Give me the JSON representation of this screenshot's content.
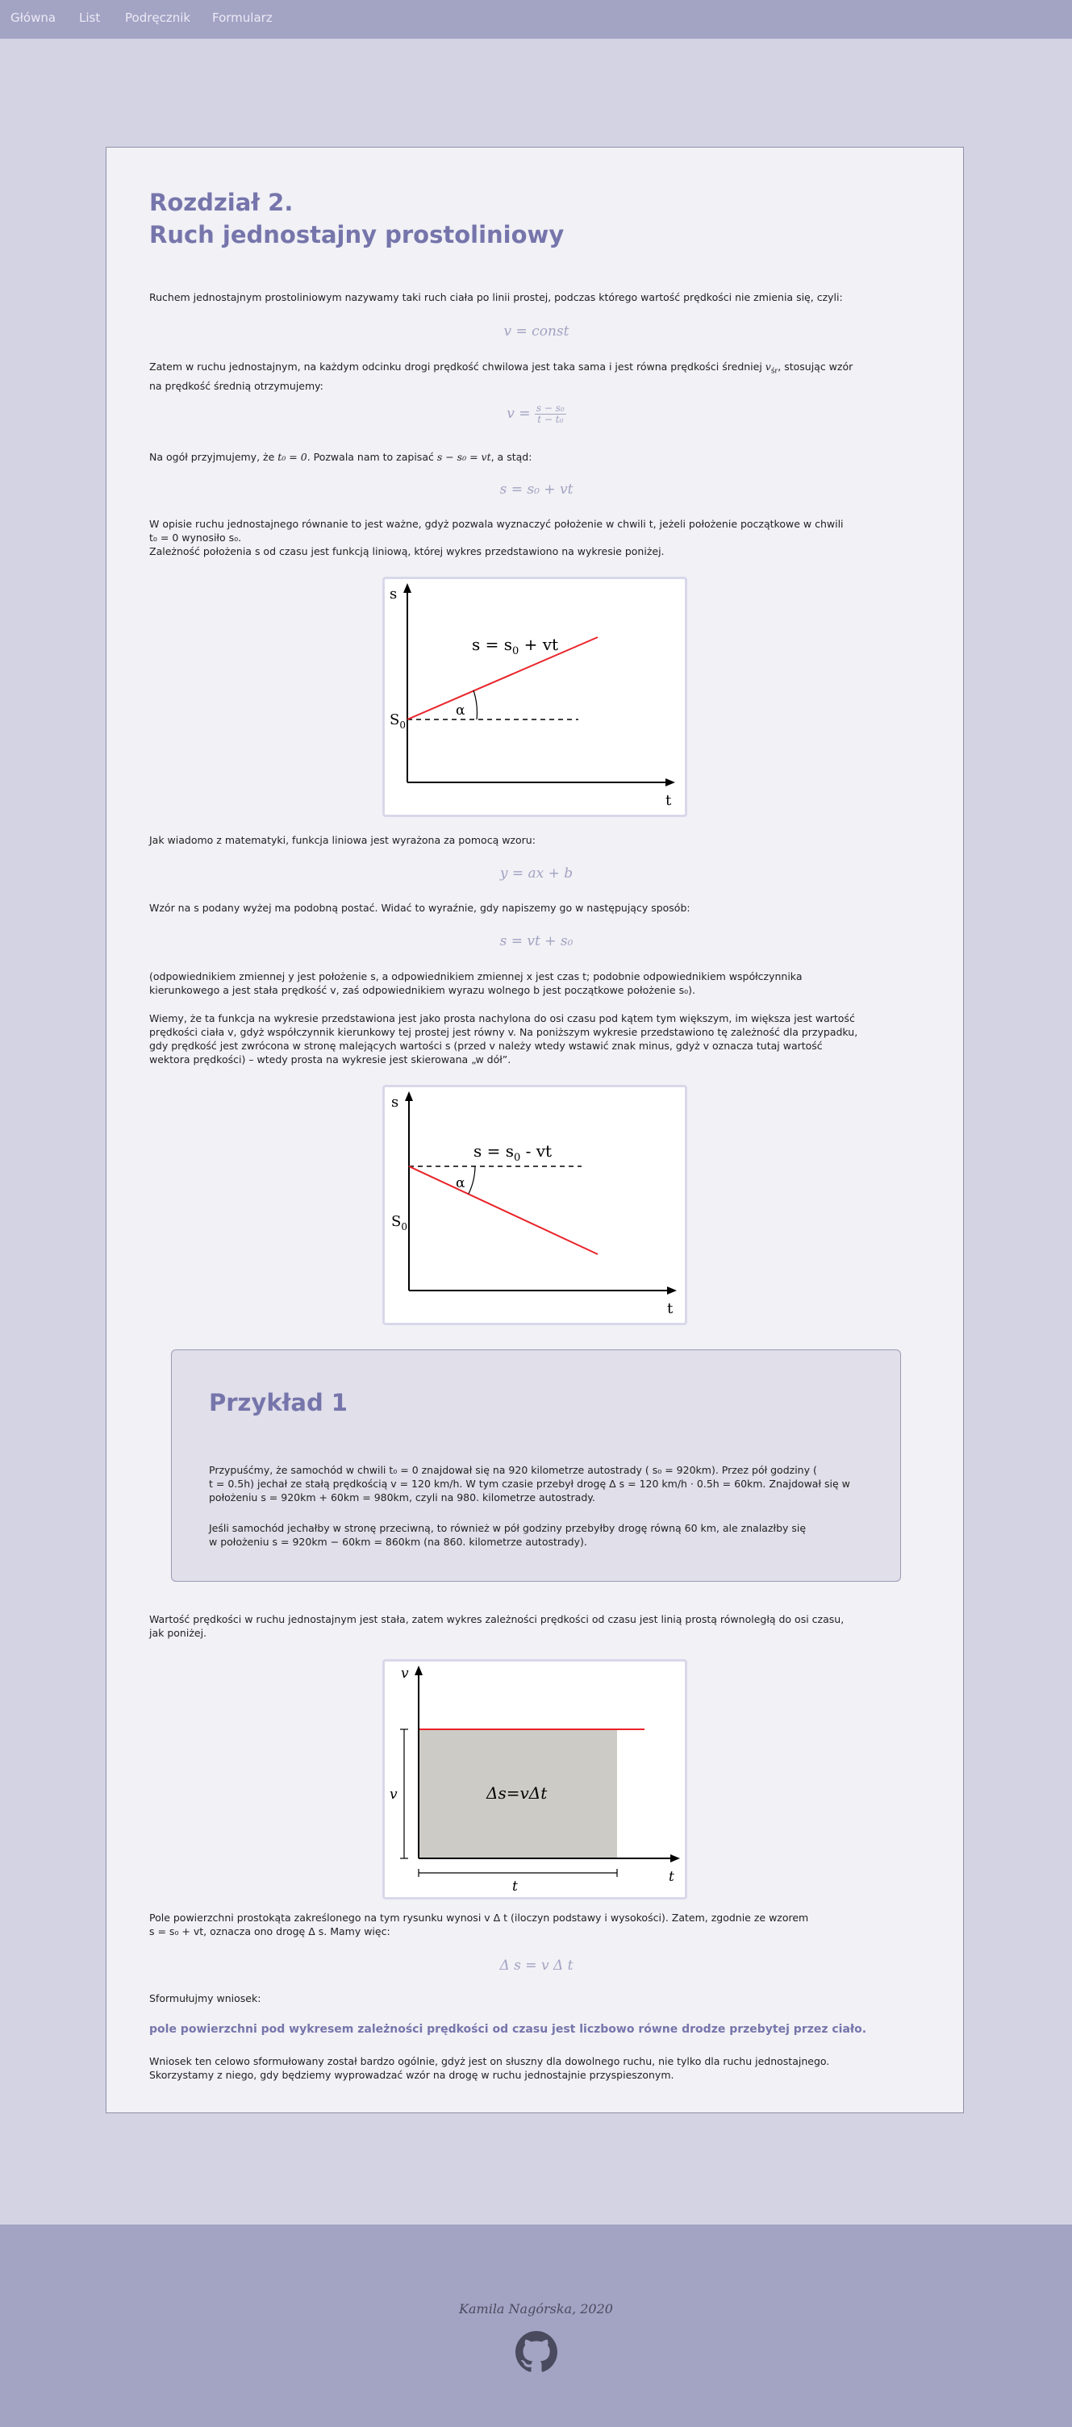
{
  "nav": {
    "items": [
      {
        "label": "Główna"
      },
      {
        "label": "List"
      },
      {
        "label": "Podręcznik"
      },
      {
        "label": "Formularz"
      }
    ]
  },
  "chapter": {
    "title_line1": "Rozdział 2.",
    "title_line2": "Ruch jednostajny prostoliniowy"
  },
  "paragraphs": {
    "p1": "Ruchem jednostajnym prostoliniowym nazywamy taki ruch ciała po linii prostej, podczas którego wartość prędkości nie zmienia się, czyli:",
    "f1": "v = const",
    "p2a": "Zatem w ruchu jednostajnym, na każdym odcinku drogi prędkość chwilowa jest taka sama i jest równa prędkości średniej ",
    "p2_vsr": "v",
    "p2_vsr_sub": "śr",
    "p2b": ", stosując wzór",
    "p2c": "na prędkość średnią otrzymujemy:",
    "f2_lhs": "v =",
    "f2_num": "s − s₀",
    "f2_den": "t − t₀",
    "p3a": "Na ogół przyjmujemy, że ",
    "p3_t0": "t₀ = 0",
    "p3b": ". Pozwala nam to zapisać ",
    "p3_eq": "s − s₀ = vt",
    "p3c": ", a stąd:",
    "f3": "s = s₀ + vt",
    "p4a": "W opisie ruchu jednostajnego równanie to jest ważne, gdyż pozwala wyznaczyć położenie w chwili t, jeżeli położenie początkowe w chwili",
    "p4b": "t₀ = 0 wynosiło s₀.",
    "p4c": "Zależność położenia s od czasu jest funkcją liniową, której wykres przedstawiono na wykresie poniżej.",
    "p5": "Jak wiadomo z matematyki, funkcja liniowa jest wyrażona za pomocą wzoru:",
    "f5": "y = ax + b",
    "p6": "Wzór na s podany wyżej ma podobną postać. Widać to wyraźnie, gdy napiszemy go w następujący sposób:",
    "f6": "s = vt + s₀",
    "p7a": "(odpowiednikiem zmiennej y jest położenie s, a odpowiednikiem zmiennej x jest czas t; podobnie odpowiednikiem współczynnika",
    "p7b": "kierunkowego a jest stała prędkość v, zaś odpowiednikiem wyrazu wolnego b jest początkowe położenie s₀).",
    "p8a": "Wiemy, że ta funkcja na wykresie przedstawiona jest jako prosta nachylona do osi czasu pod kątem tym większym, im większa jest wartość",
    "p8b": "prędkości ciała v, gdyż współczynnik kierunkowy tej prostej jest równy v. Na poniższym wykresie przedstawiono tę zależność dla przypadku,",
    "p8c": "gdy prędkość jest zwrócona w stronę malejących wartości s (przed v należy wtedy wstawić znak minus, gdyż v oznacza tutaj wartość",
    "p8d": "wektora prędkości) – wtedy prosta na wykresie jest skierowana „w dół”.",
    "p9a": "Wartość prędkości w ruchu jednostajnym jest stała, zatem wykres zależności prędkości od czasu jest linią prostą równoległą do osi czasu,",
    "p9b": "jak poniżej.",
    "p10a": "Pole powierzchni prostokąta zakreślonego na tym rysunku wynosi v Δ t (iloczyn podstawy i wysokości). Zatem, zgodnie ze wzorem",
    "p10b": "s = s₀ + vt, oznacza ono drogę  Δ s. Mamy więc:",
    "f10": "Δ s = v Δ t",
    "p11": "Sformułujmy wniosek:",
    "conclusion": "pole powierzchni pod wykresem zależności prędkości od czasu jest liczbowo równe drodze przebytej przez ciało.",
    "p12a": "Wniosek ten celowo sformułowany został bardzo ogólnie, gdyż jest on słuszny dla dowolnego ruchu, nie tylko dla ruchu jednostajnego.",
    "p12b": "Skorzystamy z niego, gdy będziemy wyprowadzać wzór na drogę w ruchu jednostajnie przyspieszonym."
  },
  "figures": {
    "fig1": {
      "ylabel": "s",
      "xlabel": "t",
      "s0": "S",
      "s0_sub": "0",
      "alpha": "α",
      "eq_a": "s = s",
      "eq_sub": "0",
      "eq_b": " + vt"
    },
    "fig2": {
      "ylabel": "s",
      "xlabel": "t",
      "s0": "S",
      "s0_sub": "0",
      "alpha": "α",
      "eq_a": "s = s",
      "eq_sub": "0",
      "eq_b": " - vt"
    },
    "fig3": {
      "ylabel": "v",
      "xlabel": "t",
      "vlabel": "v",
      "tlabel": "t",
      "area": "Δs=vΔt"
    }
  },
  "example": {
    "title": "Przykład 1",
    "l1": "Przypuśćmy, że samochód w chwili t₀ = 0 znajdował się na 920 kilometrze autostrady ( s₀ = 920km). Przez pół godziny (",
    "l2": "t = 0.5h) jechał ze stałą prędkością v = 120 km/h. W tym czasie przebył drogę  Δ s = 120 km/h · 0.5h = 60km. Znajdował się w",
    "l3": "położeniu s = 920km + 60km = 980km, czyli na 980. kilometrze autostrady.",
    "l4": "Jeśli samochód jechałby w stronę przeciwną, to również w pół godziny przebyłby drogę równą 60 km, ale znalazłby się",
    "l5": "w położeniu s = 920km − 60km = 860km (na 860. kilometrze autostrady)."
  },
  "footer": {
    "signature": "Kamila Nagórska, 2020"
  },
  "colors": {
    "nav_bg": "#a3a3c4",
    "page_bg": "#d4d3e3",
    "card_bg": "#f1f1f6",
    "accent": "#7675ab",
    "formula": "#a3a2c1",
    "graph_line": "#e8242a"
  }
}
